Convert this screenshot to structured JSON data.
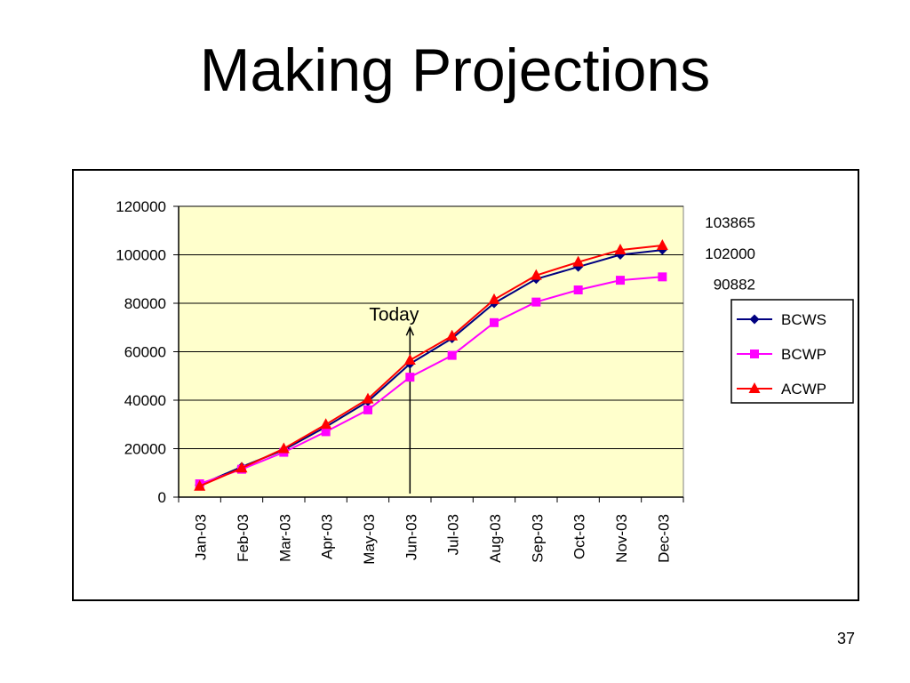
{
  "slide": {
    "title": "Making Projections",
    "page_number": "37"
  },
  "chart_data": {
    "type": "line",
    "title": "",
    "xlabel": "",
    "ylabel": "",
    "categories": [
      "Jan-03",
      "Feb-03",
      "Mar-03",
      "Apr-03",
      "May-03",
      "Jun-03",
      "Jul-03",
      "Aug-03",
      "Sep-03",
      "Oct-03",
      "Nov-03",
      "Dec-03"
    ],
    "ylim": [
      0,
      120000
    ],
    "yticks": [
      "0",
      "20000",
      "40000",
      "60000",
      "80000",
      "100000",
      "120000"
    ],
    "grid": true,
    "plot_background": "#FFFFCC",
    "legend_position": "right",
    "series": [
      {
        "name": "BCWS",
        "color": "#000080",
        "marker": "diamond",
        "values": [
          5000,
          12500,
          19500,
          29000,
          39500,
          55000,
          65500,
          80000,
          90000,
          95000,
          100000,
          102000
        ]
      },
      {
        "name": "BCWP",
        "color": "#FF00FF",
        "marker": "square",
        "values": [
          5500,
          11500,
          18500,
          27000,
          36000,
          49500,
          58500,
          72000,
          80500,
          85500,
          89500,
          90882
        ]
      },
      {
        "name": "ACWP",
        "color": "#FF0000",
        "marker": "triangle",
        "values": [
          4500,
          12000,
          20000,
          30000,
          40500,
          56500,
          66500,
          81500,
          91500,
          97000,
          102000,
          103865
        ]
      }
    ],
    "end_labels": [
      "103865",
      "102000",
      "90882"
    ],
    "annotation": {
      "text": "Today",
      "category": "Jun-03",
      "arrow_top_value": 70000
    }
  }
}
